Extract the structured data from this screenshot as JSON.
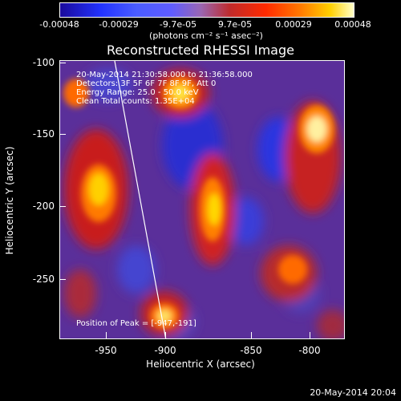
{
  "colorbar": {
    "tick_labels": [
      "-0.00048",
      "-0.00029",
      "-9.7e-05",
      "9.7e-05",
      "0.00029",
      "0.00048"
    ],
    "units": "(photons cm⁻² s⁻¹ asec⁻²)"
  },
  "image": {
    "title": "Reconstructed RHESSI Image",
    "info_lines": [
      "20-May-2014 21:30:58.000 to 21:36:58.000",
      "Detectors: 3F 5F 6F 7F 8F 9F, Att 0",
      "Energy Range: 25.0 - 50.0 keV",
      "Clean    Total counts: 1.35E+04"
    ],
    "peak_label": "Position of Peak = [-947,-191]",
    "xlabel": "Heliocentric X (arcsec)",
    "ylabel": "Heliocentric Y (arcsec)",
    "xtick_labels": [
      "-950",
      "-900",
      "-850",
      "-800"
    ],
    "ytick_labels": [
      "-100",
      "-150",
      "-200",
      "-250"
    ]
  },
  "footer": {
    "timestamp": "20-May-2014 20:04"
  },
  "colors": {
    "background": "#000000",
    "frame": "#ffffff",
    "limb_line": "#ffffff"
  }
}
